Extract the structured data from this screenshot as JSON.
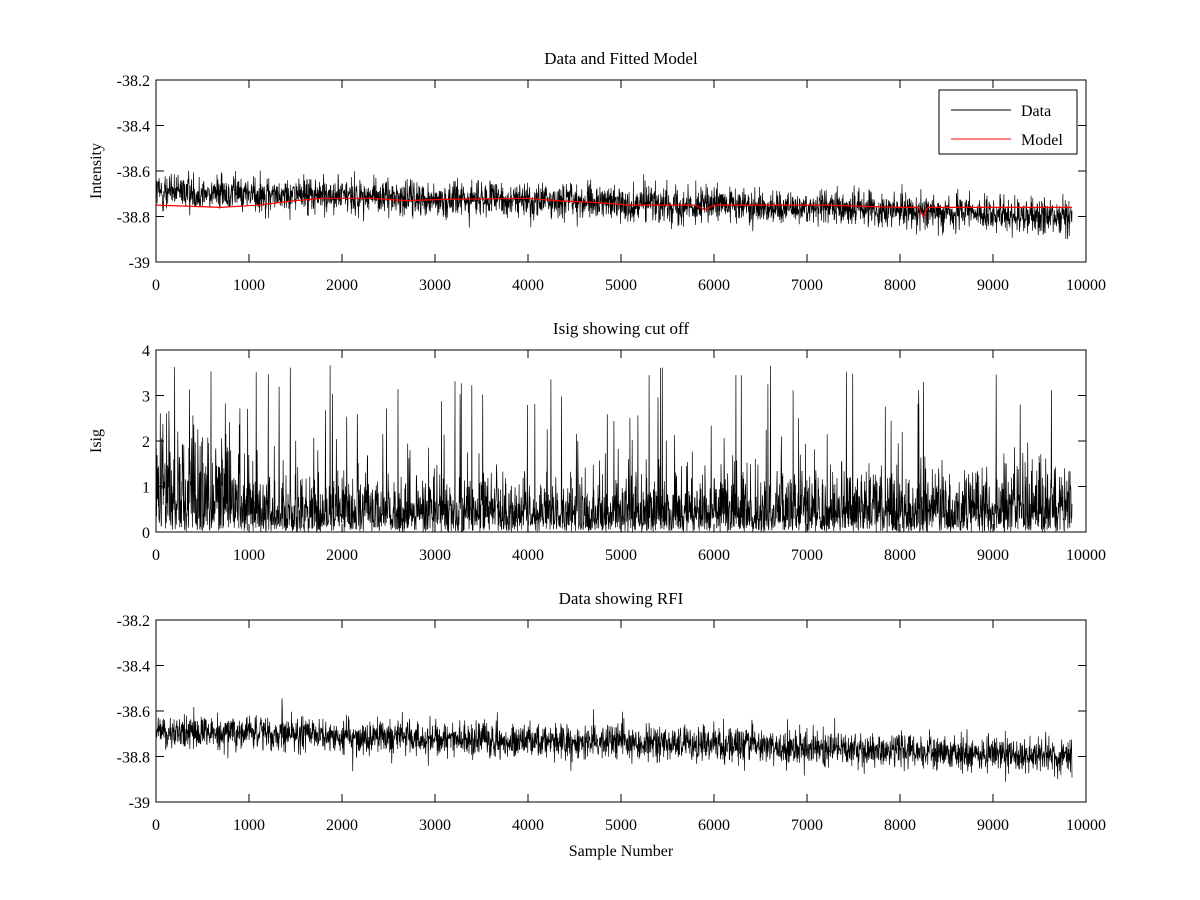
{
  "chart_data": [
    {
      "type": "line",
      "title": "Data and Fitted Model",
      "xlabel": "",
      "ylabel": "Intensity",
      "xlim": [
        0,
        10000
      ],
      "ylim": [
        -39,
        -38.2
      ],
      "xticks": [
        0,
        1000,
        2000,
        3000,
        4000,
        5000,
        6000,
        7000,
        8000,
        9000,
        10000
      ],
      "yticks": [
        -39,
        -38.8,
        -38.6,
        -38.4,
        -38.2
      ],
      "ytick_labels": [
        "-39",
        "-38.8",
        "-38.6",
        "-38.4",
        "-38.2"
      ],
      "grid": false,
      "legend_position": "top-right",
      "series": [
        {
          "name": "Data",
          "color": "#000000",
          "style": "noisy",
          "x_range": [
            0,
            9850
          ],
          "trend": [
            [
              0,
              -38.69
            ],
            [
              1000,
              -38.7
            ],
            [
              2000,
              -38.71
            ],
            [
              3000,
              -38.72
            ],
            [
              4000,
              -38.73
            ],
            [
              5000,
              -38.74
            ],
            [
              6000,
              -38.75
            ],
            [
              7000,
              -38.76
            ],
            [
              8000,
              -38.77
            ],
            [
              9000,
              -38.79
            ],
            [
              9850,
              -38.8
            ]
          ],
          "noise_amplitude": 0.09
        },
        {
          "name": "Model",
          "color": "#ff0000",
          "style": "line",
          "points": [
            [
              0,
              -38.75
            ],
            [
              700,
              -38.76
            ],
            [
              1100,
              -38.75
            ],
            [
              1500,
              -38.73
            ],
            [
              1800,
              -38.72
            ],
            [
              2300,
              -38.72
            ],
            [
              2700,
              -38.73
            ],
            [
              3100,
              -38.725
            ],
            [
              4000,
              -38.72
            ],
            [
              4300,
              -38.73
            ],
            [
              4800,
              -38.74
            ],
            [
              5100,
              -38.75
            ],
            [
              5800,
              -38.75
            ],
            [
              5900,
              -38.77
            ],
            [
              6000,
              -38.75
            ],
            [
              6700,
              -38.75
            ],
            [
              7200,
              -38.75
            ],
            [
              8000,
              -38.76
            ],
            [
              8200,
              -38.76
            ],
            [
              8250,
              -38.8
            ],
            [
              8300,
              -38.76
            ],
            [
              9000,
              -38.76
            ],
            [
              9850,
              -38.76
            ]
          ]
        }
      ]
    },
    {
      "type": "line",
      "title": "Isig showing cut off",
      "xlabel": "",
      "ylabel": "Isig",
      "xlim": [
        0,
        10000
      ],
      "ylim": [
        0,
        4
      ],
      "xticks": [
        0,
        1000,
        2000,
        3000,
        4000,
        5000,
        6000,
        7000,
        8000,
        9000,
        10000
      ],
      "yticks": [
        0,
        1,
        2,
        3,
        4
      ],
      "ytick_labels": [
        "0",
        "1",
        "2",
        "3",
        "4"
      ],
      "grid": false,
      "series": [
        {
          "name": "Isig",
          "color": "#000000",
          "style": "noisy",
          "x_range": [
            0,
            9850
          ],
          "baseline": [
            [
              0,
              1.5
            ],
            [
              1000,
              1.3
            ],
            [
              1100,
              0.85
            ],
            [
              3000,
              0.8
            ],
            [
              5000,
              0.75
            ],
            [
              7000,
              0.8
            ],
            [
              9000,
              0.9
            ],
            [
              9850,
              0.85
            ]
          ],
          "max_value": 3.75
        }
      ]
    },
    {
      "type": "line",
      "title": "Data showing RFI",
      "xlabel": "Sample Number",
      "ylabel": "",
      "xlim": [
        0,
        10000
      ],
      "ylim": [
        -39,
        -38.2
      ],
      "xticks": [
        0,
        1000,
        2000,
        3000,
        4000,
        5000,
        6000,
        7000,
        8000,
        9000,
        10000
      ],
      "yticks": [
        -39,
        -38.8,
        -38.6,
        -38.4,
        -38.2
      ],
      "ytick_labels": [
        "-39",
        "-38.8",
        "-38.6",
        "-38.4",
        "-38.2"
      ],
      "grid": false,
      "series": [
        {
          "name": "Data",
          "color": "#000000",
          "style": "noisy",
          "x_range": [
            0,
            9850
          ],
          "trend": [
            [
              0,
              -38.69
            ],
            [
              1000,
              -38.7
            ],
            [
              2000,
              -38.71
            ],
            [
              3000,
              -38.72
            ],
            [
              4000,
              -38.73
            ],
            [
              5000,
              -38.74
            ],
            [
              6000,
              -38.75
            ],
            [
              7000,
              -38.76
            ],
            [
              8000,
              -38.77
            ],
            [
              9000,
              -38.79
            ],
            [
              9850,
              -38.8
            ]
          ],
          "noise_amplitude": 0.09
        }
      ]
    }
  ]
}
